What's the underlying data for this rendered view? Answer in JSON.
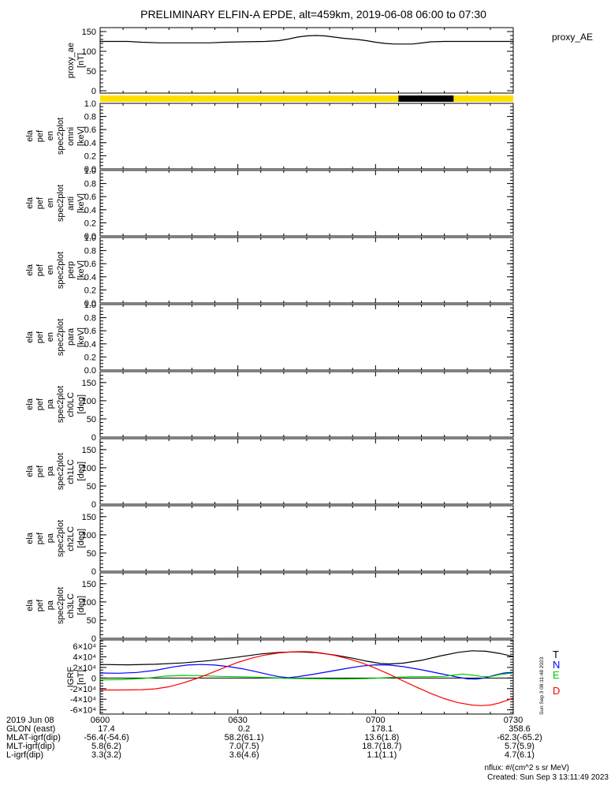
{
  "title": "PRELIMINARY ELFIN-A EPDE, alt=459km, 2019-06-08 06:00 to 07:30",
  "right_label": "proxy_AE",
  "sidestamp": "Sun Sep  3 08:11:48 2023",
  "footer": {
    "nflux": "nflux: #/(cm^2 s sr MeV)",
    "created": "Created: Sun Sep  3 13:11:49 2023"
  },
  "legend": {
    "position": "right-of-igrf-panel",
    "entries": [
      {
        "label": "T",
        "color": "#000000"
      },
      {
        "label": "N",
        "color": "#0000ff"
      },
      {
        "label": "E",
        "color": "#00cc00"
      },
      {
        "label": "D",
        "color": "#ff0000"
      }
    ]
  },
  "bottom_axis": {
    "row_labels": [
      "2019 Jun 08",
      "GLON (east)",
      "MLAT-igrf(dip)",
      "MLT-igrf(dip)",
      "L-igrf(dip)"
    ],
    "tick_minutes": [
      0,
      30,
      60,
      90
    ],
    "rows": [
      [
        "0600",
        "0630",
        "0700",
        "0730"
      ],
      [
        "17.4",
        "0.2",
        "178.1",
        "358.6"
      ],
      [
        "-56.4(-54.6)",
        "58.2(61.1)",
        "13.6(1.8)",
        "-62.3(-65.2)"
      ],
      [
        "5.8(6.2)",
        "7.0(7.5)",
        "18.7(18.7)",
        "5.7(5.9)"
      ],
      [
        "3.3(3.2)",
        "3.6(4.6)",
        "1.1(1.1)",
        "4.7(6.1)"
      ]
    ]
  },
  "chart_data": {
    "type": "line",
    "title": "PRELIMINARY ELFIN-A EPDE, alt=459km, 2019-06-08 06:00 to 07:30",
    "x_axis": {
      "label": "UT",
      "start": "2019-06-08 06:00",
      "end": "2019-06-08 07:30",
      "duration_min": 90,
      "major_tick_minutes": [
        0,
        30,
        60,
        90
      ],
      "major_tick_labels": [
        "0600",
        "0630",
        "0700",
        "0730"
      ],
      "minor_step_min": 5
    },
    "availability_bar": {
      "base_color": "#ffdf00",
      "segments": [
        {
          "from_min": 0,
          "to_min": 90,
          "color": "#ffdf00"
        },
        {
          "from_min": 65,
          "to_min": 77,
          "color": "#000000"
        }
      ]
    },
    "panels": [
      {
        "id": "proxy_ae",
        "label_lines": [
          "proxy_ae",
          "[nT]"
        ],
        "ylabel": "proxy_ae [nT]",
        "ylim": [
          -6,
          160
        ],
        "yticks": [
          0,
          50,
          100,
          150
        ],
        "ytick_labels": [
          "0",
          "50",
          "100",
          "150"
        ],
        "minor_step": 10,
        "grid": false,
        "series": [
          {
            "name": "proxy_ae",
            "color": "#000000",
            "points": [
              [
                0,
                125
              ],
              [
                6,
                125
              ],
              [
                9,
                123
              ],
              [
                13,
                121.5
              ],
              [
                24,
                121.5
              ],
              [
                27,
                123
              ],
              [
                31,
                124
              ],
              [
                36,
                125
              ],
              [
                39,
                127
              ],
              [
                41,
                131
              ],
              [
                43,
                136
              ],
              [
                45,
                139
              ],
              [
                47,
                140
              ],
              [
                49,
                139
              ],
              [
                51,
                136
              ],
              [
                53,
                133
              ],
              [
                56,
                130
              ],
              [
                58,
                127
              ],
              [
                60,
                123
              ],
              [
                62,
                120
              ],
              [
                64,
                118.5
              ],
              [
                68,
                118.5
              ],
              [
                70,
                121
              ],
              [
                72,
                124
              ],
              [
                75,
                125
              ],
              [
                90,
                125
              ]
            ]
          }
        ]
      },
      {
        "id": "omni",
        "label_lines": [
          "ela",
          "pef",
          "en",
          "spec2plot",
          "omni",
          "[keV]"
        ],
        "ylabel": "ela pef en spec2plot omni [keV]",
        "ylim": [
          0,
          1.0
        ],
        "yticks": [
          0.0,
          0.2,
          0.4,
          0.6,
          0.8,
          1.0
        ],
        "ytick_labels": [
          "0.0",
          "0.2",
          "0.4",
          "0.6",
          "0.8",
          "1.0"
        ],
        "minor_step": 0.05,
        "grid": false,
        "series": []
      },
      {
        "id": "anti",
        "label_lines": [
          "ela",
          "pef",
          "en",
          "spec2plot",
          "anti",
          "[keV]"
        ],
        "ylabel": "ela pef en spec2plot anti [keV]",
        "ylim": [
          0,
          1.0
        ],
        "yticks": [
          0.0,
          0.2,
          0.4,
          0.6,
          0.8,
          1.0
        ],
        "ytick_labels": [
          "0.0",
          "0.2",
          "0.4",
          "0.6",
          "0.8",
          "1.0"
        ],
        "minor_step": 0.05,
        "grid": false,
        "series": []
      },
      {
        "id": "perp",
        "label_lines": [
          "ela",
          "pef",
          "en",
          "spec2plot",
          "perp",
          "[keV]"
        ],
        "ylabel": "ela pef en spec2plot perp [keV]",
        "ylim": [
          0,
          1.0
        ],
        "yticks": [
          0.0,
          0.2,
          0.4,
          0.6,
          0.8,
          1.0
        ],
        "ytick_labels": [
          "0.0",
          "0.2",
          "0.4",
          "0.6",
          "0.8",
          "1.0"
        ],
        "minor_step": 0.05,
        "grid": false,
        "series": []
      },
      {
        "id": "para",
        "label_lines": [
          "ela",
          "pef",
          "en",
          "spec2plot",
          "para",
          "[keV]"
        ],
        "ylabel": "ela pef en spec2plot para [keV]",
        "ylim": [
          0,
          1.0
        ],
        "yticks": [
          0.0,
          0.2,
          0.4,
          0.6,
          0.8,
          1.0
        ],
        "ytick_labels": [
          "0.0",
          "0.2",
          "0.4",
          "0.6",
          "0.8",
          "1.0"
        ],
        "minor_step": 0.05,
        "grid": false,
        "series": []
      },
      {
        "id": "ch0LC",
        "label_lines": [
          "ela",
          "pef",
          "pa",
          "spec2plot",
          "ch0LC",
          "[deg]"
        ],
        "ylabel": "ela pef pa spec2plot ch0LC [deg]",
        "ylim": [
          0,
          180
        ],
        "yticks": [
          0,
          50,
          100,
          150
        ],
        "ytick_labels": [
          "0",
          "50",
          "100",
          "150"
        ],
        "minor_step": 10,
        "grid": false,
        "series": []
      },
      {
        "id": "ch1LC",
        "label_lines": [
          "ela",
          "pef",
          "pa",
          "spec2plot",
          "ch1LC",
          "[deg]"
        ],
        "ylabel": "ela pef pa spec2plot ch1LC [deg]",
        "ylim": [
          0,
          180
        ],
        "yticks": [
          0,
          50,
          100,
          150
        ],
        "ytick_labels": [
          "0",
          "50",
          "100",
          "150"
        ],
        "minor_step": 10,
        "grid": false,
        "series": []
      },
      {
        "id": "ch2LC",
        "label_lines": [
          "ela",
          "pef",
          "pa",
          "spec2plot",
          "ch2LC",
          "[deg]"
        ],
        "ylabel": "ela pef pa spec2plot ch2LC [deg]",
        "ylim": [
          0,
          180
        ],
        "yticks": [
          0,
          50,
          100,
          150
        ],
        "ytick_labels": [
          "0",
          "50",
          "100",
          "150"
        ],
        "minor_step": 10,
        "grid": false,
        "series": []
      },
      {
        "id": "ch3LC",
        "label_lines": [
          "ela",
          "pef",
          "pa",
          "spec2plot",
          "ch3LC",
          "[deg]"
        ],
        "ylabel": "ela pef pa spec2plot ch3LC [deg]",
        "ylim": [
          0,
          180
        ],
        "yticks": [
          0,
          50,
          100,
          150
        ],
        "ytick_labels": [
          "0",
          "50",
          "100",
          "150"
        ],
        "minor_step": 10,
        "grid": false,
        "series": []
      },
      {
        "id": "igrf",
        "label_lines": [
          "IGRF",
          "[nT]"
        ],
        "ylabel": "IGRF [nT]",
        "ylim": [
          -68000,
          72000
        ],
        "yticks": [
          -60000,
          -40000,
          -20000,
          0,
          20000,
          40000,
          60000
        ],
        "ytick_labels": [
          "-6×10⁴",
          "-4×10⁴",
          "-2×10⁴",
          "0",
          "2×10⁴",
          "4×10⁴",
          "6×10⁴"
        ],
        "minor_step": 5000,
        "grid": false,
        "zero_line": true,
        "series": [
          {
            "name": "T",
            "color": "#000000",
            "points": [
              [
                0,
                25500
              ],
              [
                6,
                25000
              ],
              [
                12,
                26000
              ],
              [
                18,
                28500
              ],
              [
                24,
                33000
              ],
              [
                30,
                39500
              ],
              [
                35,
                45500
              ],
              [
                39,
                48500
              ],
              [
                43,
                49500
              ],
              [
                47,
                48000
              ],
              [
                51,
                43500
              ],
              [
                55,
                37500
              ],
              [
                58,
                32000
              ],
              [
                61,
                27500
              ],
              [
                63,
                26500
              ],
              [
                66,
                28000
              ],
              [
                70,
                33500
              ],
              [
                74,
                41500
              ],
              [
                78,
                48500
              ],
              [
                81,
                51500
              ],
              [
                84,
                50500
              ],
              [
                87,
                46500
              ],
              [
                90,
                40500
              ]
            ]
          },
          {
            "name": "N",
            "color": "#0000ff",
            "points": [
              [
                0,
                9500
              ],
              [
                4,
                9000
              ],
              [
                8,
                10500
              ],
              [
                12,
                14500
              ],
              [
                16,
                21000
              ],
              [
                19,
                24500
              ],
              [
                22,
                25500
              ],
              [
                25,
                24500
              ],
              [
                28,
                21500
              ],
              [
                31,
                17500
              ],
              [
                34,
                12000
              ],
              [
                37,
                6000
              ],
              [
                39,
                2500
              ],
              [
                41,
                500
              ],
              [
                43,
                2500
              ],
              [
                46,
                6500
              ],
              [
                50,
                12500
              ],
              [
                54,
                18500
              ],
              [
                57,
                22500
              ],
              [
                60,
                25000
              ],
              [
                63,
                24500
              ],
              [
                66,
                21500
              ],
              [
                70,
                15500
              ],
              [
                74,
                8500
              ],
              [
                78,
                1500
              ],
              [
                80,
                -1500
              ],
              [
                82,
                -2000
              ],
              [
                84,
                500
              ],
              [
                86,
                5500
              ],
              [
                88,
                9500
              ],
              [
                90,
                11000
              ]
            ]
          },
          {
            "name": "E",
            "color": "#00cc00",
            "points": [
              [
                0,
                -3500
              ],
              [
                5,
                -3000
              ],
              [
                10,
                -500
              ],
              [
                14,
                3500
              ],
              [
                18,
                5000
              ],
              [
                22,
                4500
              ],
              [
                26,
                3000
              ],
              [
                30,
                2500
              ],
              [
                34,
                1500
              ],
              [
                38,
                500
              ],
              [
                40,
                -500
              ],
              [
                44,
                -1000
              ],
              [
                48,
                -1500
              ],
              [
                52,
                -2000
              ],
              [
                56,
                -1500
              ],
              [
                60,
                -500
              ],
              [
                64,
                1500
              ],
              [
                68,
                2500
              ],
              [
                72,
                2500
              ],
              [
                75,
                3000
              ],
              [
                77,
                5500
              ],
              [
                79,
                7500
              ],
              [
                81,
                5500
              ],
              [
                83,
                3000
              ],
              [
                85,
                2500
              ],
              [
                87,
                6500
              ],
              [
                89,
                8500
              ],
              [
                90,
                9000
              ]
            ]
          },
          {
            "name": "D",
            "color": "#ff0000",
            "points": [
              [
                0,
                -22500
              ],
              [
                5,
                -22500
              ],
              [
                9,
                -22000
              ],
              [
                12,
                -20500
              ],
              [
                15,
                -16500
              ],
              [
                18,
                -9500
              ],
              [
                21,
                -1000
              ],
              [
                24,
                9000
              ],
              [
                27,
                19500
              ],
              [
                30,
                29500
              ],
              [
                33,
                37500
              ],
              [
                36,
                43500
              ],
              [
                39,
                47500
              ],
              [
                42,
                49500
              ],
              [
                44,
                50000
              ],
              [
                46,
                49500
              ],
              [
                48,
                47500
              ],
              [
                51,
                43000
              ],
              [
                54,
                36500
              ],
              [
                57,
                28500
              ],
              [
                60,
                18500
              ],
              [
                63,
                7000
              ],
              [
                66,
                -5500
              ],
              [
                69,
                -17500
              ],
              [
                72,
                -29000
              ],
              [
                75,
                -39000
              ],
              [
                78,
                -46500
              ],
              [
                81,
                -51000
              ],
              [
                83,
                -52000
              ],
              [
                85,
                -51000
              ],
              [
                87,
                -47000
              ],
              [
                89,
                -41000
              ],
              [
                90,
                -37500
              ]
            ]
          }
        ]
      }
    ]
  }
}
